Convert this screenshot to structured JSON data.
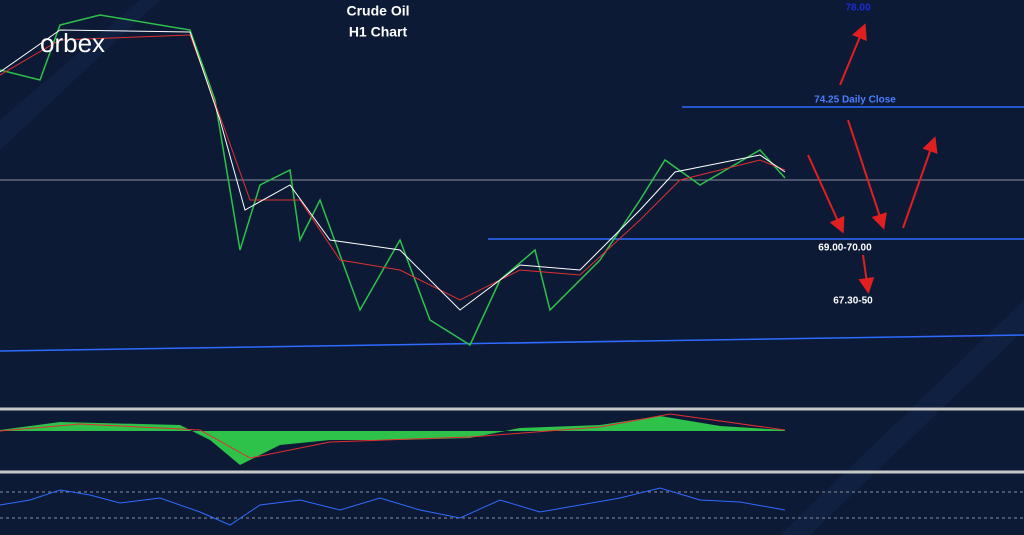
{
  "logo": "orbex",
  "title": "Crude Oil",
  "subtitle": "H1 Chart",
  "annotations": {
    "target": "78.00",
    "daily_close": "74.25 Daily Close",
    "support_zone": "69.00-70.00",
    "lower_target": "67.30-50"
  }
}
